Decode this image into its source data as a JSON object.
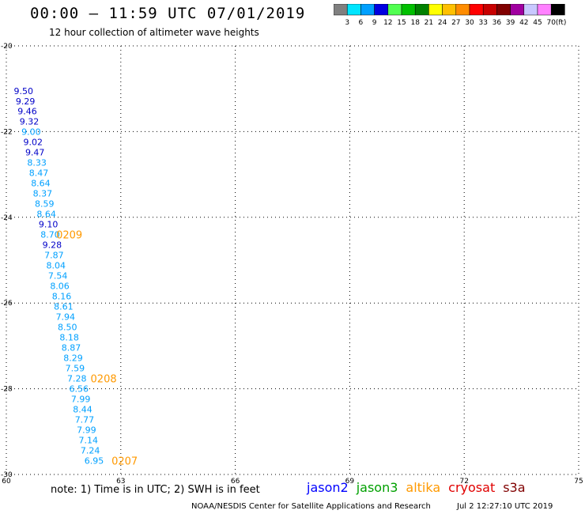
{
  "header": {
    "title": "00:00 – 11:59 UTC 07/01/2019",
    "subtitle": "12 hour collection of altimeter wave heights"
  },
  "colorbar": {
    "colors": [
      "#808080",
      "#00e5ff",
      "#00a0ff",
      "#0000e0",
      "#50ff50",
      "#00c000",
      "#008000",
      "#ffff00",
      "#ffc000",
      "#ff8c00",
      "#ff0000",
      "#c80000",
      "#800000",
      "#a000a0",
      "#c8c8ff",
      "#ff80ff",
      "#000000"
    ],
    "labels": [
      "3",
      "6",
      "9",
      "12",
      "15",
      "18",
      "21",
      "24",
      "27",
      "30",
      "33",
      "36",
      "39",
      "42",
      "45",
      "70"
    ],
    "unit": "(ft)"
  },
  "map": {
    "lon_ticks": [
      60,
      63,
      66,
      69,
      72,
      75
    ],
    "lat_ticks": [
      -20,
      -22,
      -24,
      -26,
      -28,
      -30
    ],
    "lon_range": [
      60,
      75
    ],
    "lat_range": [
      -30,
      -20
    ]
  },
  "chart_data": {
    "type": "scatter",
    "xlabel": "",
    "ylabel": "",
    "xlim": [
      60,
      75
    ],
    "ylim": [
      -30,
      -20
    ],
    "units": "ft",
    "series": [
      {
        "name": "jason2",
        "points": [
          {
            "lon": 60.45,
            "lat": -21.05,
            "swh": 9.5,
            "color": "#0000c8"
          },
          {
            "lon": 60.5,
            "lat": -21.29,
            "swh": 9.29,
            "color": "#0000c8"
          },
          {
            "lon": 60.55,
            "lat": -21.52,
            "swh": 9.46,
            "color": "#0000c8"
          },
          {
            "lon": 60.6,
            "lat": -21.76,
            "swh": 9.32,
            "color": "#0000c8"
          },
          {
            "lon": 60.65,
            "lat": -22.0,
            "swh": 9.0,
            "color": "#00a0ff"
          },
          {
            "lon": 60.7,
            "lat": -22.24,
            "swh": 9.02,
            "color": "#0000c8"
          },
          {
            "lon": 60.75,
            "lat": -22.48,
            "swh": 9.47,
            "color": "#0000c8"
          },
          {
            "lon": 60.8,
            "lat": -22.72,
            "swh": 8.33,
            "color": "#00a0ff"
          },
          {
            "lon": 60.85,
            "lat": -22.96,
            "swh": 8.47,
            "color": "#00a0ff"
          },
          {
            "lon": 60.9,
            "lat": -23.2,
            "swh": 8.64,
            "color": "#00a0ff"
          },
          {
            "lon": 60.95,
            "lat": -23.44,
            "swh": 8.37,
            "color": "#00a0ff"
          },
          {
            "lon": 61.0,
            "lat": -23.68,
            "swh": 8.59,
            "color": "#00a0ff"
          },
          {
            "lon": 61.05,
            "lat": -23.92,
            "swh": 8.64,
            "color": "#00a0ff"
          },
          {
            "lon": 61.1,
            "lat": -24.16,
            "swh": 9.1,
            "color": "#0000c8"
          },
          {
            "lon": 61.15,
            "lat": -24.4,
            "swh": 8.7,
            "color": "#00a0ff"
          },
          {
            "lon": 61.2,
            "lat": -24.64,
            "swh": 9.28,
            "color": "#0000c8"
          },
          {
            "lon": 61.25,
            "lat": -24.88,
            "swh": 7.87,
            "color": "#00a0ff"
          },
          {
            "lon": 61.3,
            "lat": -25.12,
            "swh": 8.04,
            "color": "#00a0ff"
          },
          {
            "lon": 61.35,
            "lat": -25.36,
            "swh": 7.54,
            "color": "#00a0ff"
          },
          {
            "lon": 61.4,
            "lat": -25.6,
            "swh": 8.06,
            "color": "#00a0ff"
          },
          {
            "lon": 61.45,
            "lat": -25.84,
            "swh": 8.16,
            "color": "#00a0ff"
          },
          {
            "lon": 61.5,
            "lat": -26.08,
            "swh": 8.61,
            "color": "#00a0ff"
          },
          {
            "lon": 61.55,
            "lat": -26.32,
            "swh": 7.94,
            "color": "#00a0ff"
          },
          {
            "lon": 61.6,
            "lat": -26.56,
            "swh": 8.5,
            "color": "#00a0ff"
          },
          {
            "lon": 61.65,
            "lat": -26.8,
            "swh": 8.18,
            "color": "#00a0ff"
          },
          {
            "lon": 61.7,
            "lat": -27.04,
            "swh": 8.87,
            "color": "#00a0ff"
          },
          {
            "lon": 61.75,
            "lat": -27.28,
            "swh": 8.29,
            "color": "#00a0ff"
          },
          {
            "lon": 61.8,
            "lat": -27.52,
            "swh": 7.59,
            "color": "#00a0ff"
          },
          {
            "lon": 61.85,
            "lat": -27.76,
            "swh": 7.28,
            "color": "#00a0ff"
          },
          {
            "lon": 61.9,
            "lat": -28.0,
            "swh": 6.56,
            "color": "#00a0ff"
          },
          {
            "lon": 61.95,
            "lat": -28.24,
            "swh": 7.99,
            "color": "#00a0ff"
          },
          {
            "lon": 62.0,
            "lat": -28.48,
            "swh": 8.44,
            "color": "#00a0ff"
          },
          {
            "lon": 62.05,
            "lat": -28.72,
            "swh": 7.77,
            "color": "#00a0ff"
          },
          {
            "lon": 62.1,
            "lat": -28.96,
            "swh": 7.99,
            "color": "#00a0ff"
          },
          {
            "lon": 62.15,
            "lat": -29.2,
            "swh": 7.14,
            "color": "#00a0ff"
          },
          {
            "lon": 62.2,
            "lat": -29.44,
            "swh": 7.24,
            "color": "#00a0ff"
          },
          {
            "lon": 62.3,
            "lat": -29.68,
            "swh": 6.95,
            "color": "#00a0ff"
          }
        ]
      }
    ],
    "time_labels": [
      {
        "text": "0209",
        "lon": 61.65,
        "lat": -24.4
      },
      {
        "text": "0208",
        "lon": 62.55,
        "lat": -27.76
      },
      {
        "text": "0207",
        "lon": 63.1,
        "lat": -29.68
      }
    ]
  },
  "footer": {
    "note": "note: 1) Time is in UTC; 2) SWH is in feet",
    "satellites": [
      {
        "name": "jason2",
        "color": "#0000ff"
      },
      {
        "name": "jason3",
        "color": "#00a000"
      },
      {
        "name": "altika",
        "color": "#ff9900"
      },
      {
        "name": "cryosat",
        "color": "#e00000"
      },
      {
        "name": "s3a",
        "color": "#800000"
      }
    ],
    "credit": "NOAA/NESDIS Center for Satellite Applications and Research",
    "timestamp": "Jul  2 12:27:10 UTC 2019"
  }
}
